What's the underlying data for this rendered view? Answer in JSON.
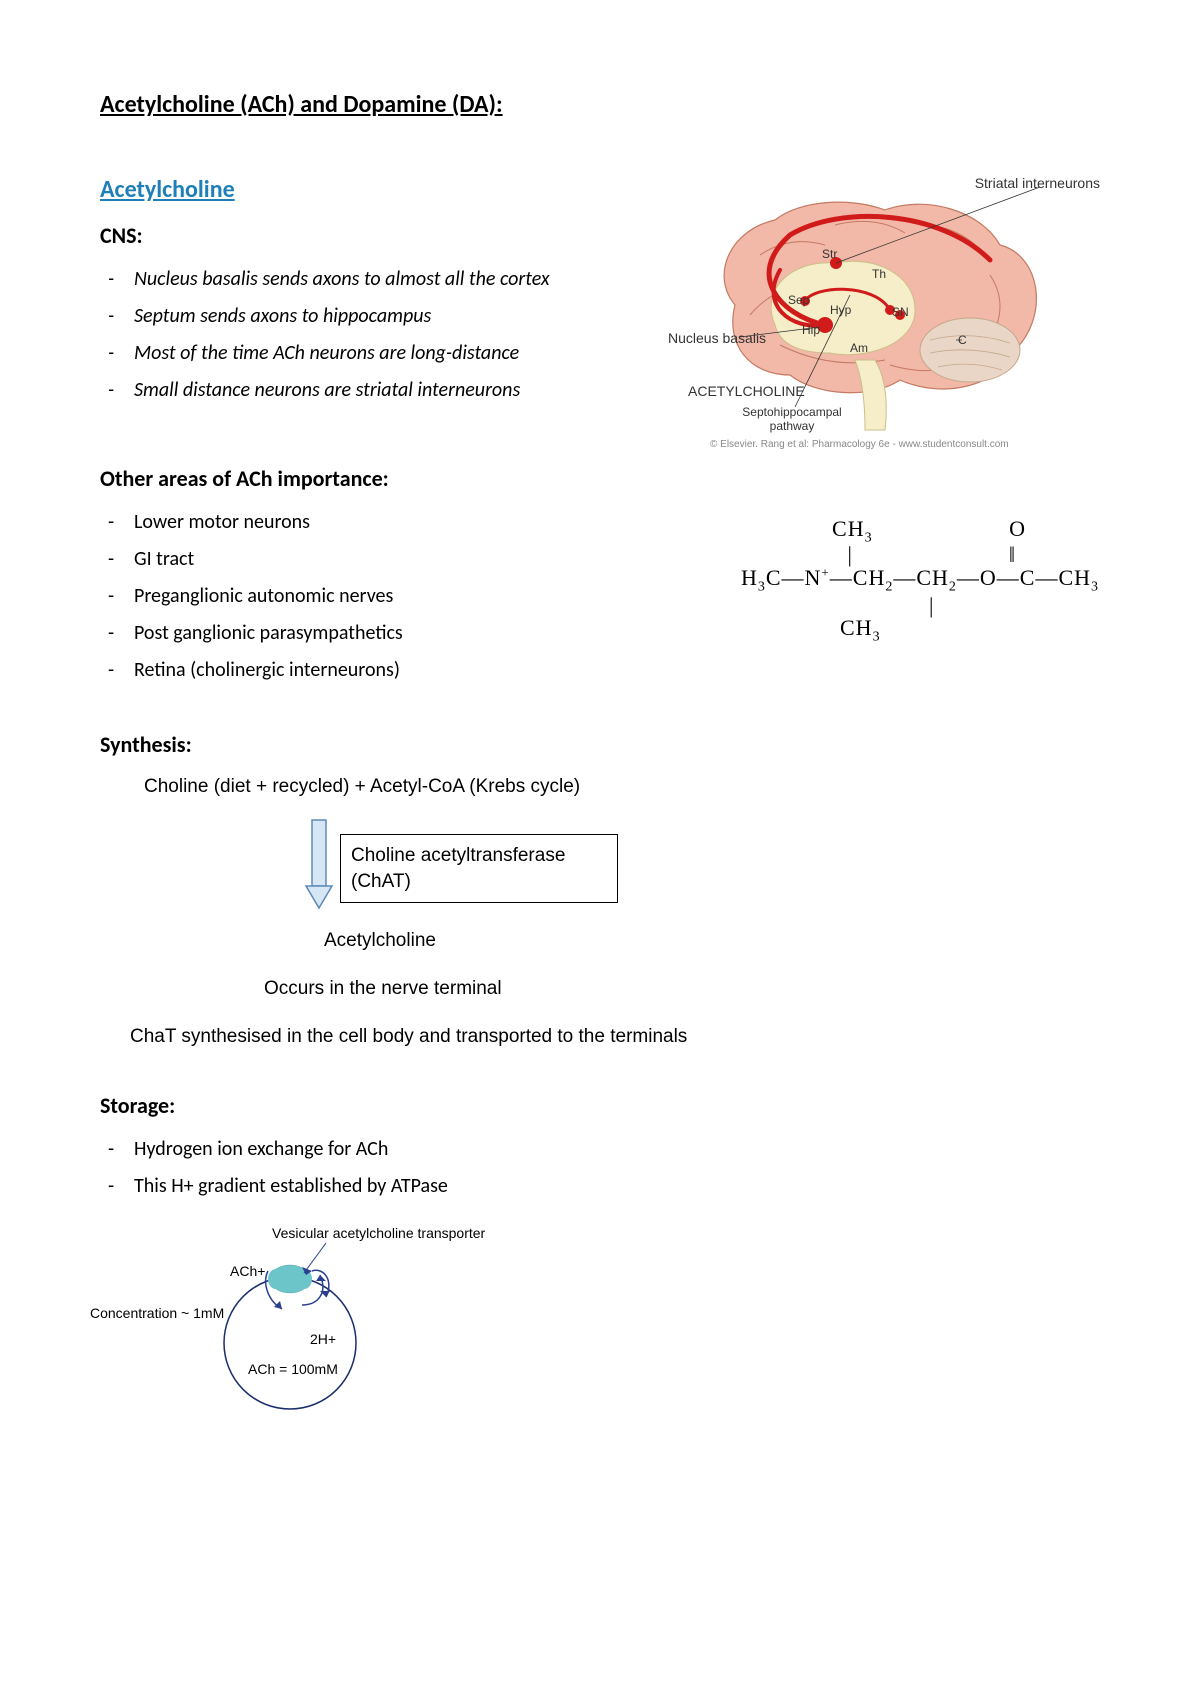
{
  "title": "Acetylcholine (ACh) and Dopamine (DA):",
  "sections": {
    "acetylcholine": {
      "heading": "Acetylcholine",
      "heading_color": "#1f7fb8",
      "cns": {
        "title": "CNS:",
        "items": [
          "Nucleus basalis sends axons to almost all the cortex",
          "Septum sends axons to hippocampus",
          "Most of the time ACh neurons are long-distance",
          "Small distance neurons are striatal interneurons"
        ]
      },
      "other_areas": {
        "title": "Other areas of ACh importance:",
        "items": [
          "Lower motor neurons",
          "GI tract",
          "Preganglionic autonomic nerves",
          "Post ganglionic parasympathetics",
          "Retina (cholinergic interneurons)"
        ]
      },
      "synthesis": {
        "title": "Synthesis:",
        "input": "Choline (diet + recycled) + Acetyl-CoA (Krebs cycle)",
        "enzyme_line1": "Choline acetyltransferase",
        "enzyme_line2": "(ChAT)",
        "output": "Acetylcholine",
        "note1": "Occurs in the nerve terminal",
        "note2": "ChaT synthesised in the cell body and transported to the terminals"
      },
      "storage": {
        "title": "Storage:",
        "items": [
          "Hydrogen ion exchange for ACh",
          "This H+ gradient established by ATPase"
        ]
      }
    }
  },
  "brain_diagram": {
    "colors": {
      "cortex_fill": "#f2b8a8",
      "cortex_stroke": "#c47a63",
      "inner_fill": "#f6eec8",
      "inner_stroke": "#cbbf88",
      "cerebellum_fill": "#ead6c6",
      "cerebellum_stroke": "#c4a789",
      "pathway": "#d11b1b",
      "node": "#d11b1b",
      "leader": "#333333"
    },
    "labels": {
      "striatal": "Striatal interneurons",
      "nucleus_basalis": "Nucleus basalis",
      "ach_title": "ACETYLCHOLINE",
      "pathway": "Septohippocampal pathway",
      "str": "Str",
      "th": "Th",
      "sep": "Sep",
      "hyp": "Hyp",
      "sn": "SN",
      "hip": "Hip",
      "am": "Am",
      "c": "C",
      "credit": "© Elsevier. Rang et al: Pharmacology 6e - www.studentconsult.com"
    }
  },
  "chem_structure": {
    "line_top": "CH₃                   O",
    "line_upper": "|                      ‖",
    "line_main": "H₃C—N⁺—CH₂—CH₂—O—C—CH₃",
    "line_lower": "|",
    "line_bottom": "CH₃"
  },
  "vesicle": {
    "labels": {
      "vat": "Vesicular acetylcholine transporter",
      "ach_out": "ACh+",
      "conc_out": "Concentration ~ 1mM",
      "h2": "2H+",
      "ach_in": "ACh =  100mM"
    },
    "colors": {
      "circle_stroke": "#1a2e6b",
      "transporter": "#6bc5c9",
      "arrow": "#2a3f8f",
      "leader": "#2a3f8f"
    }
  },
  "arrow_colors": {
    "fill": "#d6e6f4",
    "stroke": "#5b8ab8"
  }
}
